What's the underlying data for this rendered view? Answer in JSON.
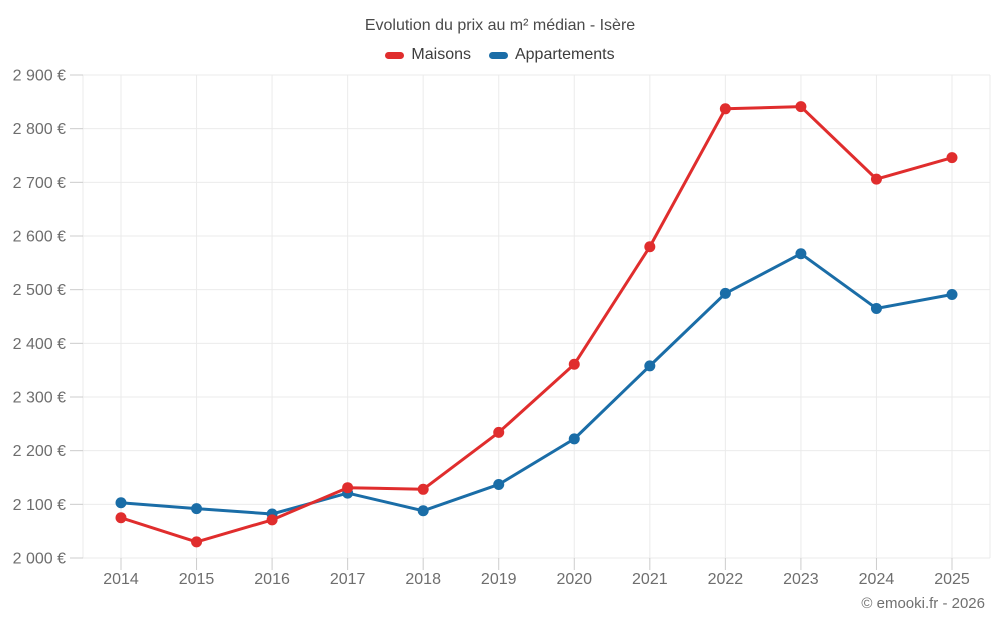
{
  "chart_data": {
    "type": "line",
    "title": "Evolution du prix au m² médian - Isère",
    "x": [
      2014,
      2015,
      2016,
      2017,
      2018,
      2019,
      2020,
      2021,
      2022,
      2023,
      2024,
      2025
    ],
    "series": [
      {
        "name": "Maisons",
        "color": "#e02d2d",
        "values": [
          2075,
          2030,
          2071,
          2131,
          2128,
          2234,
          2361,
          2580,
          2837,
          2841,
          2706,
          2746
        ]
      },
      {
        "name": "Appartements",
        "color": "#1a6da7",
        "values": [
          2103,
          2092,
          2082,
          2121,
          2088,
          2137,
          2222,
          2358,
          2493,
          2567,
          2465,
          2491
        ]
      }
    ],
    "ylim": [
      2000,
      2900
    ],
    "ytick_step": 100,
    "y_unit": "€",
    "grid": true,
    "legend_position": "top",
    "legend_labels": [
      "Maisons",
      "Appartements"
    ]
  },
  "footer": {
    "text": "© emooki.fr - 2026"
  },
  "colors": {
    "maisons": "#e02d2d",
    "appartements": "#1a6da7",
    "gridline": "#ebebeb",
    "tick": "#cccccc",
    "axis_text": "#6e6e6e"
  }
}
